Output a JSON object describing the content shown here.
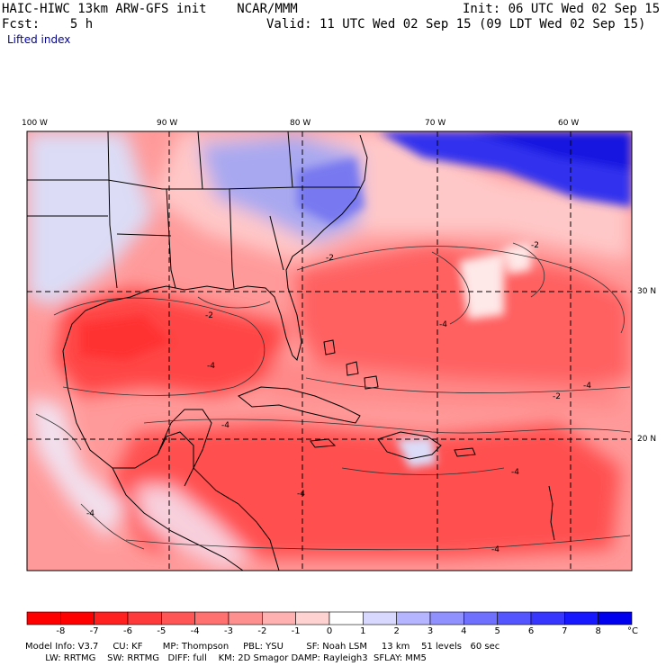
{
  "header": {
    "model_line": "HAIC-HIWC 13km ARW-GFS init    NCAR/MMM",
    "init_line": "Init: 06 UTC Wed 02 Sep 15",
    "fcst_line": "Fcst:    5 h",
    "valid_line": "Valid: 11 UTC Wed 02 Sep 15 (09 LDT Wed 02 Sep 15)",
    "field_name": "Lifted index"
  },
  "axes": {
    "lon_labels": [
      "100 W",
      "90 W",
      "80 W",
      "70 W",
      "60 W"
    ],
    "lat_labels": [
      "30 N",
      "20 N"
    ]
  },
  "contour_labels": [
    "-2",
    "-4",
    "-2",
    "-4",
    "-4",
    "-2",
    "-4",
    "-4",
    "-2",
    "-4",
    "-4",
    "-4"
  ],
  "colorbar": {
    "unit": "°C",
    "labels": [
      "-8",
      "-7",
      "-6",
      "-5",
      "-4",
      "-3",
      "-2",
      "-1",
      "0",
      "1",
      "2",
      "3",
      "4",
      "5",
      "6",
      "7",
      "8"
    ],
    "colors": [
      "#ff0000",
      "#ff2020",
      "#ff3a3a",
      "#ff5555",
      "#ff7070",
      "#ff9090",
      "#ffb0b0",
      "#ffd2d2",
      "#ffffff",
      "#d8d8ff",
      "#b4b4ff",
      "#9090ff",
      "#7070ff",
      "#5555ff",
      "#3636ff",
      "#1818ff",
      "#0000ee"
    ]
  },
  "footer": {
    "line1": "Model Info: V3.7     CU: KF       MP: Thompson     PBL: YSU        SF: Noah LSM     13 km    51 levels   60 sec",
    "line2": "       LW: RRTMG    SW: RRTMG   DIFF: full    KM: 2D Smagor DAMP: Rayleigh3  SFLAY: MM5"
  }
}
